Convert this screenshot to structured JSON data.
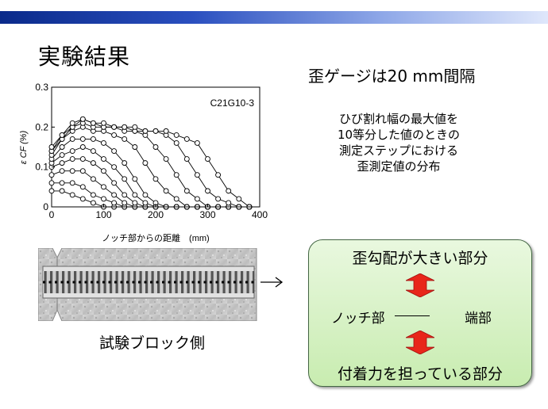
{
  "slide": {
    "title": "実験結果",
    "subtitle": "歪ゲージは20 mm間隔",
    "description": [
      "ひび割れ幅の最大値を",
      "10等分した値のときの",
      "測定ステップにおける",
      "歪測定値の分布"
    ],
    "specimen_label": "試験ブロック側",
    "box": {
      "top": "歪勾配が大きい部分",
      "notch": "ノッチ部",
      "end": "端部",
      "bottom": "付着力を担っている部分"
    },
    "colors": {
      "topbar": "#1a3a9a",
      "box_fill": "#d8f2c8",
      "arrow_red": "#e8261a"
    }
  },
  "chart_data": {
    "type": "line",
    "annotation": "C21G10-3",
    "xlabel": "ノッチ部からの距離　(mm)",
    "ylabel": "ε CF (%)",
    "xlim": [
      0,
      400
    ],
    "ylim": [
      0,
      0.3
    ],
    "xticks": [
      0,
      100,
      200,
      300,
      400
    ],
    "yticks": [
      0,
      0.1,
      0.2,
      0.3
    ],
    "x": [
      0,
      20,
      40,
      60,
      80,
      100,
      120,
      140,
      160,
      180,
      200,
      220,
      240,
      260,
      280,
      300,
      320,
      340,
      360,
      380
    ],
    "series": [
      {
        "values": [
          0.04,
          0.04,
          0.03,
          0.02,
          0.01,
          0.0,
          0.0,
          0.0,
          0.0,
          0.0,
          0.0,
          0.0,
          0.0,
          0.0,
          0.0,
          0.0,
          0.0,
          0.0,
          0.0,
          0.0
        ]
      },
      {
        "values": [
          0.06,
          0.06,
          0.06,
          0.05,
          0.03,
          0.02,
          0.01,
          0.0,
          0.0,
          0.0,
          0.0,
          0.0,
          0.0,
          0.0,
          0.0,
          0.0,
          0.0,
          0.0,
          0.0,
          0.0
        ]
      },
      {
        "values": [
          0.08,
          0.09,
          0.09,
          0.09,
          0.07,
          0.05,
          0.03,
          0.01,
          0.0,
          0.0,
          0.0,
          0.0,
          0.0,
          0.0,
          0.0,
          0.0,
          0.0,
          0.0,
          0.0,
          0.0
        ]
      },
      {
        "values": [
          0.1,
          0.11,
          0.12,
          0.12,
          0.11,
          0.09,
          0.06,
          0.03,
          0.01,
          0.0,
          0.0,
          0.0,
          0.0,
          0.0,
          0.0,
          0.0,
          0.0,
          0.0,
          0.0,
          0.0
        ]
      },
      {
        "values": [
          0.11,
          0.13,
          0.14,
          0.15,
          0.14,
          0.12,
          0.1,
          0.07,
          0.03,
          0.01,
          0.0,
          0.0,
          0.0,
          0.0,
          0.0,
          0.0,
          0.0,
          0.0,
          0.0,
          0.0
        ]
      },
      {
        "values": [
          0.12,
          0.15,
          0.17,
          0.17,
          0.17,
          0.16,
          0.14,
          0.11,
          0.07,
          0.03,
          0.01,
          0.0,
          0.0,
          0.0,
          0.0,
          0.0,
          0.0,
          0.0,
          0.0,
          0.0
        ]
      },
      {
        "values": [
          0.13,
          0.17,
          0.19,
          0.2,
          0.19,
          0.19,
          0.18,
          0.17,
          0.15,
          0.11,
          0.07,
          0.04,
          0.02,
          0.0,
          0.0,
          0.0,
          0.0,
          0.0,
          0.0,
          0.0
        ]
      },
      {
        "values": [
          0.14,
          0.17,
          0.2,
          0.21,
          0.2,
          0.2,
          0.2,
          0.19,
          0.19,
          0.18,
          0.15,
          0.12,
          0.08,
          0.04,
          0.02,
          0.0,
          0.0,
          0.0,
          0.0,
          0.0
        ]
      },
      {
        "values": [
          0.14,
          0.18,
          0.2,
          0.22,
          0.21,
          0.2,
          0.2,
          0.2,
          0.19,
          0.19,
          0.19,
          0.18,
          0.16,
          0.12,
          0.08,
          0.04,
          0.02,
          0.01,
          0.0,
          0.0
        ]
      },
      {
        "values": [
          0.15,
          0.18,
          0.21,
          0.22,
          0.21,
          0.21,
          0.2,
          0.2,
          0.2,
          0.19,
          0.19,
          0.19,
          0.18,
          0.17,
          0.16,
          0.12,
          0.08,
          0.04,
          0.02,
          0.0
        ]
      }
    ]
  }
}
